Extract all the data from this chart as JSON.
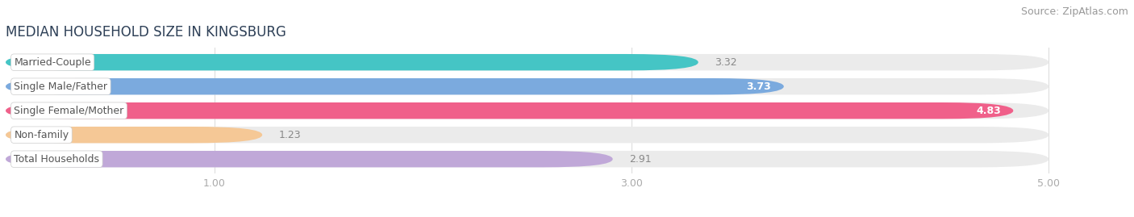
{
  "title": "MEDIAN HOUSEHOLD SIZE IN KINGSBURG",
  "source": "Source: ZipAtlas.com",
  "categories": [
    "Married-Couple",
    "Single Male/Father",
    "Single Female/Mother",
    "Non-family",
    "Total Households"
  ],
  "values": [
    3.32,
    3.73,
    4.83,
    1.23,
    2.91
  ],
  "bar_colors": [
    "#45c5c5",
    "#7baade",
    "#f0608a",
    "#f5c896",
    "#c0a8d8"
  ],
  "xlim_start": 0.0,
  "xlim_end": 5.3,
  "data_max": 5.0,
  "xticks": [
    1.0,
    3.0,
    5.0
  ],
  "xtick_labels": [
    "1.00",
    "3.00",
    "5.00"
  ],
  "background_color": "#ffffff",
  "bar_track_color": "#ebebeb",
  "title_fontsize": 12,
  "source_fontsize": 9,
  "label_fontsize": 9,
  "value_fontsize": 9,
  "title_color": "#2e4057",
  "source_color": "#999999",
  "label_color": "#555555",
  "value_color_inside": "#ffffff",
  "value_color_outside": "#888888",
  "grid_color": "#dddddd"
}
